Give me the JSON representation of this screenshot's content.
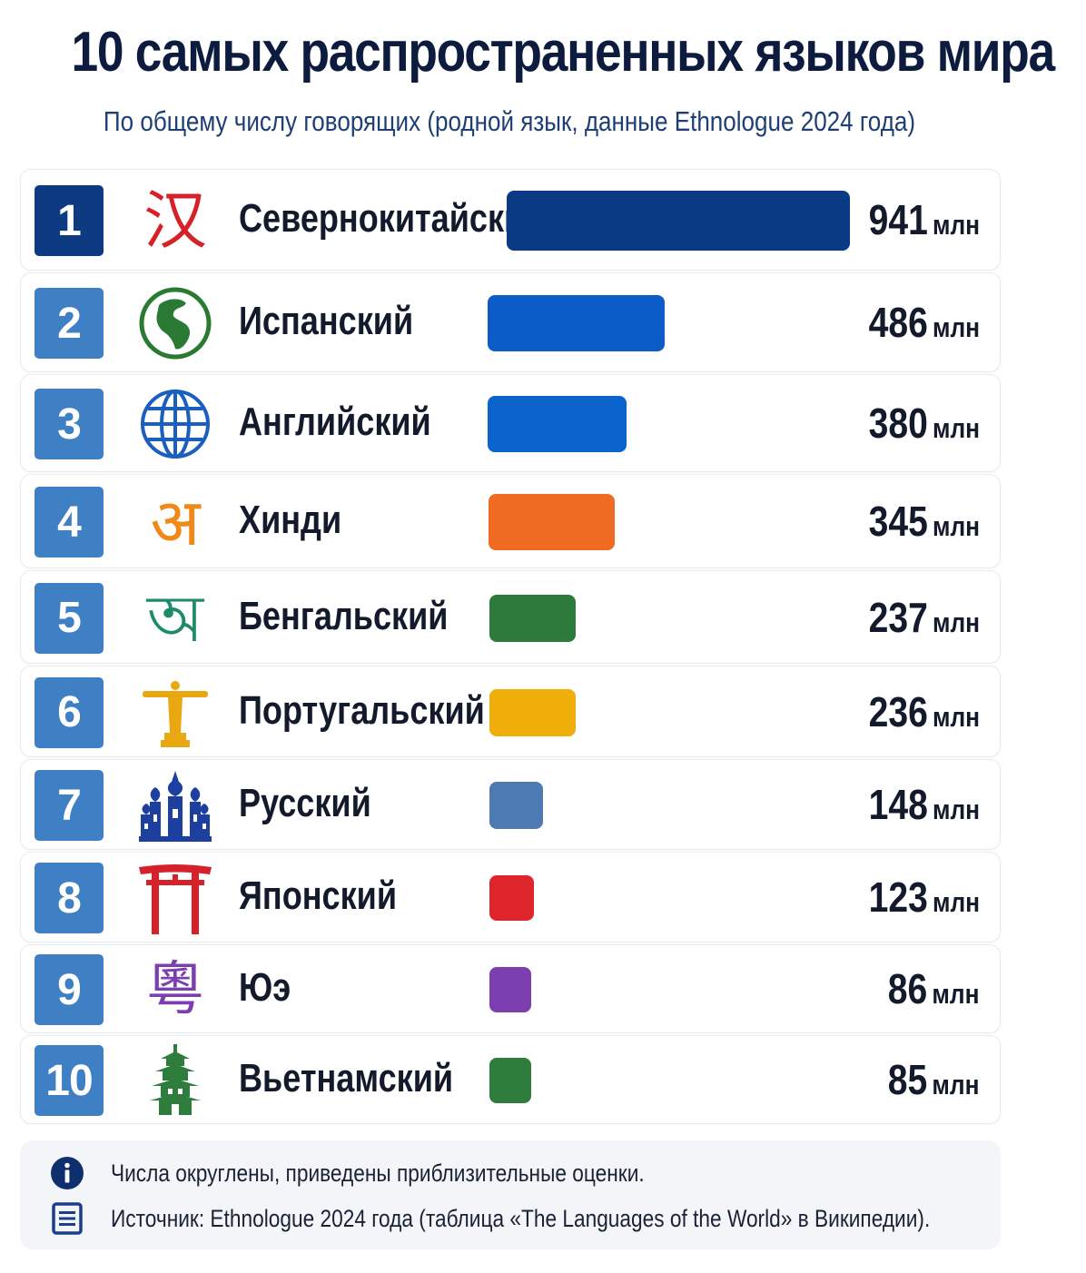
{
  "title": "10 самых распространенных языков мира",
  "subtitle": "По общему числу говорящих (родной язык, данные Ethnologue 2024 года)",
  "unit": "млн",
  "chart_data": {
    "type": "bar",
    "orientation": "horizontal",
    "title": "10 самых распространенных языков мира",
    "subtitle": "По общему числу говорящих (родной язык, данные Ethnologue 2024 года)",
    "value_unit": "млн",
    "ranks": [
      "1",
      "2",
      "3",
      "4",
      "5",
      "6",
      "7",
      "8",
      "9",
      "10"
    ],
    "categories": [
      "Севернокитайский",
      "Испанский",
      "Английский",
      "Хинди",
      "Бенгальский",
      "Португальский",
      "Русский",
      "Японский",
      "Юэ",
      "Вьетнамский"
    ],
    "values": [
      941,
      486,
      380,
      345,
      237,
      236,
      148,
      123,
      86,
      85
    ],
    "value_labels": [
      "941",
      "486",
      "380",
      "345",
      "237",
      "236",
      "148",
      "123",
      "86",
      "85"
    ],
    "colors": [
      "#0b3a84",
      "#0b5cc8",
      "#0b63cc",
      "#ef6b22",
      "#2e7a3c",
      "#efae0a",
      "#4d7ab3",
      "#e0242c",
      "#7b3fb0",
      "#2f7d3c"
    ],
    "icons": [
      "han-character-icon",
      "americas-globe-icon",
      "world-globe-icon",
      "devanagari-a-icon",
      "bengali-a-icon",
      "christ-the-redeemer-icon",
      "saint-basil-cathedral-icon",
      "torii-gate-icon",
      "yue-character-icon",
      "pagoda-icon"
    ],
    "xlim": [
      0,
      941
    ]
  },
  "notes": {
    "line1": "Числа округлены, приведены приблизительные оценки.",
    "line2": "Источник: Ethnologue 2024 года (таблица «The Languages of the World» в Википедии)."
  }
}
